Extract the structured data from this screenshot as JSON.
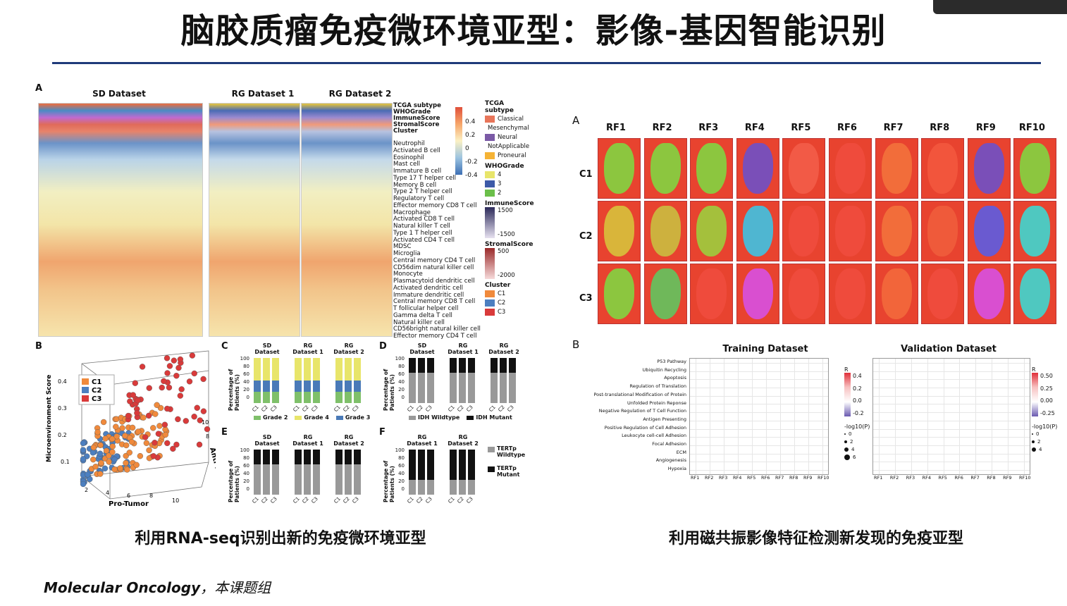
{
  "slide": {
    "title": "脑胶质瘤免疫微环境亚型：影像-基因智能识别",
    "caption_left": "利用RNA-seq识别出新的免疫微环境亚型",
    "caption_right": "利用磁共振影像特征检测新发现的免疫亚型",
    "citation_journal": "Molecular Oncology",
    "citation_rest": "，本课题组"
  },
  "left_figure": {
    "panel_a": "A",
    "panel_b": "B",
    "panel_c": "C",
    "panel_d": "D",
    "panel_e": "E",
    "panel_f": "F",
    "datasets": [
      "SD Dataset",
      "RG Dataset 1",
      "RG Dataset 2"
    ],
    "annotation_rows": [
      "TCGA subtype",
      "WHOGrade",
      "ImmuneScore",
      "StromalScore",
      "Cluster"
    ],
    "cell_rows": [
      "Neutrophil",
      "Activated B cell",
      "Eosinophil",
      "Mast cell",
      "Immature  B cell",
      "Type 17 T helper cell",
      "Memory B cell",
      "Type 2 T helper cell",
      "Regulatory T cell",
      "Effector memory CD8 T cell",
      "Macrophage",
      "Activated CD8 T cell",
      "Natural killer T cell",
      "Type 1 T helper cell",
      "Activated CD4 T cell",
      "MDSC",
      "Microglia",
      "Central memory CD4 T cell",
      "CD56dim natural killer cell",
      "Monocyte",
      "Plasmacytoid dendritic cell",
      "Activated dendritic cell",
      "Immature dendritic cell",
      "Central memory CD8 T cell",
      "T follicular helper cell",
      "Gamma delta T cell",
      "Natural killer cell",
      "CD56bright natural killer cell",
      "Effector memory CD4 T cell"
    ],
    "colorbar_ticks": [
      "0.4",
      "0.2",
      "0",
      "-0.2",
      "-0.4"
    ],
    "legend_tcga_title": "TCGA subtype",
    "legend_tcga": [
      "Classical",
      "Mesenchymal",
      "Neural",
      "NotApplicable",
      "Proneural"
    ],
    "legend_tcga_colors": [
      "#e8755a",
      "#9ec9e2",
      "#7b5aa6",
      "#4daf4a",
      "#f5b335"
    ],
    "legend_who_title": "WHOGrade",
    "legend_who": [
      "4",
      "3",
      "2"
    ],
    "legend_who_colors": [
      "#e8e56a",
      "#3d5aa8",
      "#6bbf4a"
    ],
    "legend_immune_title": "ImmuneScore",
    "legend_immune": [
      "1500",
      "-1500"
    ],
    "legend_stromal_title": "StromalScore",
    "legend_stromal": [
      "500",
      "-2000"
    ],
    "legend_cluster_title": "Cluster",
    "legend_cluster": [
      "C1",
      "C2",
      "C3"
    ],
    "legend_cluster_colors": [
      "#f08a3c",
      "#4c7fc0",
      "#d93a3a"
    ],
    "scatter_ylabel": "Microenvironment Score",
    "scatter_xlabel": "Pro-Tumor",
    "scatter_zlabel": "Anti-Tumor",
    "scatter_yticks": [
      "0.4",
      "0.3",
      "0.2",
      "0.1"
    ],
    "scatter_xticks": [
      "2",
      "4",
      "6",
      "8",
      "10"
    ],
    "scatter_zticks": [
      "10",
      "8"
    ],
    "scatter_legend": [
      "C1",
      "C2",
      "C3"
    ],
    "bar_ylabel": "Percentage of Patients (%)",
    "bar_yticks": [
      "100",
      "80",
      "60",
      "40",
      "20",
      "0"
    ],
    "bar_xticks": [
      "C1",
      "C2",
      "C3"
    ],
    "c_datasets": [
      "SD Dataset",
      "RG Dataset 1",
      "RG Dataset 2"
    ],
    "c_legend": [
      "Grade 2",
      "Grade 4",
      "Grade 3"
    ],
    "d_datasets": [
      "SD Dataset",
      "RG Dataset 1",
      "RG Dataset 2"
    ],
    "d_legend": [
      "IDH Wildtype",
      "IDH Mutant"
    ],
    "e_datasets": [
      "SD Dataset",
      "RG Dataset 1",
      "RG Dataset 2"
    ],
    "f_datasets": [
      "RG Dataset 1",
      "RG Dataset 2"
    ],
    "f_legend": [
      "TERTp Wildtype",
      "TERTp Mutant"
    ]
  },
  "right_figure": {
    "panel_a": "A",
    "panel_b": "B",
    "rf_columns": [
      "RF1",
      "RF2",
      "RF3",
      "RF4",
      "RF5",
      "RF6",
      "RF7",
      "RF8",
      "RF9",
      "RF10"
    ],
    "rf_rows": [
      "C1",
      "C2",
      "C3"
    ],
    "dot_train_title": "Training Dataset",
    "dot_valid_title": "Validation Dataset",
    "pathways": [
      "P53 Pathway",
      "Ubiquitin Recycling",
      "Apoptosis",
      "Regulation of Translation",
      "Post-translational Modification of Protein",
      "Unfolded Protein Reponse",
      "Negative Regulation of T Cell Function",
      "Antigen Presenting",
      "Positive Regulation of Cell Adhesion",
      "Leukocyte cell-cell Adhesion",
      "Focal Adhesion",
      "ECM",
      "Angiogenesis",
      "Hypoxia"
    ],
    "train_r_ticks": [
      "0.4",
      "0.2",
      "0.0",
      "-0.2"
    ],
    "valid_r_ticks": [
      "0.50",
      "0.25",
      "0.00",
      "-0.25"
    ],
    "r_label": "R",
    "p_label": "-log10(P)",
    "train_p_ticks": [
      "0",
      "2",
      "4",
      "6"
    ],
    "valid_p_ticks": [
      "0",
      "2",
      "4"
    ]
  }
}
